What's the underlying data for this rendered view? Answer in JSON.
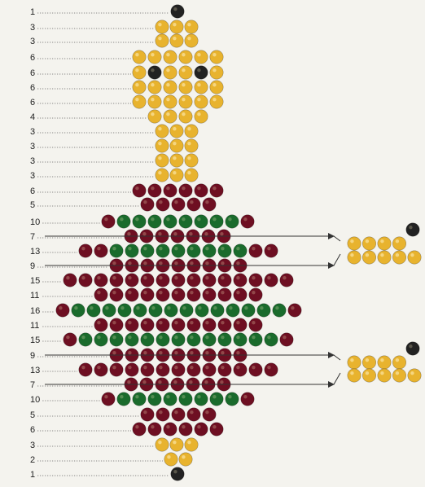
{
  "colors": {
    "gold": "#e8b32e",
    "maroon": "#6e0f22",
    "green": "#1a6b2c",
    "black": "#222222",
    "highlight": "#fff3c4"
  },
  "pattern": {
    "row_counts": [
      "1",
      "3",
      "3",
      "6",
      "6",
      "6",
      "6",
      "4",
      "3",
      "3",
      "3",
      "3",
      "6",
      "5",
      "10",
      "7",
      "13",
      "9",
      "15",
      "11",
      "16",
      "11",
      "15",
      "9",
      "13",
      "7",
      "10",
      "5",
      "6",
      "3",
      "2",
      "1"
    ],
    "legs": [
      {
        "rows": [
          [
            "gold",
            "gold",
            "gold",
            "gold",
            "black"
          ],
          [
            "gold",
            "gold",
            "gold",
            "gold",
            "gold"
          ]
        ]
      },
      {
        "rows": [
          [
            "gold",
            "gold",
            "gold",
            "gold",
            "black"
          ],
          [
            "gold",
            "gold",
            "gold",
            "gold",
            "gold"
          ]
        ]
      }
    ]
  }
}
